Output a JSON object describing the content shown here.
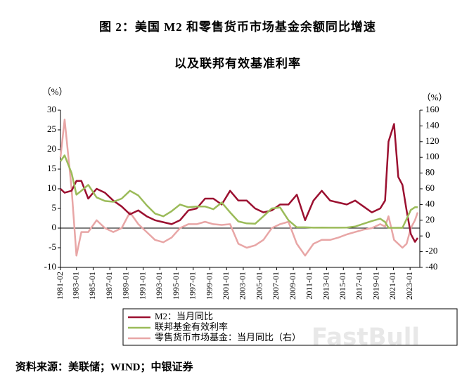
{
  "chart_data": {
    "type": "line",
    "title": "图 2：美国 M2 和零售货币市场基金余额同比增速",
    "subtitle": "以及联邦有效基准利率",
    "ylabel": "（%）",
    "y2label": "（%）",
    "source": "资料来源：美联储；WIND；中银证券",
    "watermark": "FastBull",
    "x": [
      "1981-02",
      "1981-08",
      "1982-06",
      "1983-01",
      "1983-08",
      "1984-06",
      "1985-06",
      "1986-06",
      "1987-06",
      "1988-06",
      "1989-06",
      "1990-06",
      "1991-06",
      "1992-06",
      "1993-06",
      "1994-06",
      "1995-06",
      "1996-06",
      "1997-06",
      "1998-06",
      "1999-06",
      "2000-06",
      "2001-06",
      "2002-06",
      "2003-06",
      "2004-06",
      "2005-06",
      "2006-06",
      "2007-06",
      "2008-06",
      "2009-06",
      "2010-06",
      "2011-06",
      "2012-06",
      "2013-06",
      "2014-06",
      "2015-06",
      "2016-06",
      "2017-06",
      "2018-06",
      "2019-06",
      "2020-01",
      "2020-06",
      "2021-02",
      "2021-08",
      "2022-02",
      "2022-08",
      "2023-02",
      "2023-08",
      "2023-12"
    ],
    "xlim": [
      "1981-02",
      "2024-03"
    ],
    "xticks": [
      "1981-02",
      "1983-01",
      "1985-01",
      "1987-01",
      "1989-01",
      "1991-01",
      "1993-01",
      "1995-01",
      "1997-01",
      "1999-01",
      "2001-01",
      "2003-01",
      "2005-01",
      "2007-01",
      "2009-01",
      "2011-01",
      "2013-01",
      "2015-01",
      "2017-01",
      "2019-01",
      "2021-01",
      "2023-01"
    ],
    "ylim": [
      -10,
      30
    ],
    "yticks": [
      -10,
      -5,
      0,
      5,
      10,
      15,
      20,
      25,
      30
    ],
    "y2lim": [
      -40,
      160
    ],
    "y2ticks": [
      -40,
      -20,
      0,
      20,
      40,
      60,
      80,
      100,
      120,
      140,
      160
    ],
    "grid": false,
    "series": [
      {
        "name": "M2：当月同比",
        "color": "#9b1030",
        "values": [
          10,
          9,
          9.5,
          12,
          12,
          7.5,
          10,
          9,
          7,
          5.5,
          3.5,
          4.5,
          3,
          2,
          1.5,
          1,
          2,
          4.5,
          5,
          7.5,
          7.5,
          6,
          9.5,
          7,
          7,
          5,
          4,
          4.5,
          6,
          6,
          8.5,
          2,
          7,
          9.5,
          7,
          6.5,
          6,
          7,
          5.5,
          4,
          5,
          7,
          22,
          26.5,
          13,
          11,
          4.5,
          -1.5,
          -3.5,
          -2.5
        ]
      },
      {
        "name": "联邦基金有效利率",
        "color": "#9bbb59",
        "values": [
          17,
          18.5,
          14,
          8.5,
          9.5,
          11,
          7.8,
          6.9,
          6.7,
          7.5,
          9.5,
          8.3,
          5.8,
          3.7,
          3,
          4.3,
          6,
          5.3,
          5.5,
          5.5,
          4.8,
          6.5,
          4,
          1.7,
          1.2,
          1.1,
          3,
          5,
          5.25,
          2,
          0.2,
          0.2,
          0.1,
          0.15,
          0.1,
          0.1,
          0.13,
          0.4,
          1.1,
          1.8,
          2.4,
          1.55,
          0.08,
          0.07,
          0.09,
          0.08,
          2.3,
          4.6,
          5.3,
          5.3
        ]
      },
      {
        "name": "零售货币市场基金：当月同比（右）",
        "color": "#e8a6a6",
        "axis": "y2",
        "values": [
          100,
          148,
          60,
          -25,
          5,
          5,
          20,
          10,
          5,
          10,
          30,
          15,
          5,
          -5,
          -8,
          -2,
          10,
          15,
          15,
          18,
          15,
          14,
          15,
          -10,
          -15,
          -12,
          -5,
          10,
          15,
          18,
          -10,
          -25,
          -10,
          -5,
          -5,
          -2,
          2,
          5,
          8,
          10,
          15,
          12,
          25,
          -5,
          -10,
          -15,
          -10,
          10,
          20,
          30
        ]
      }
    ]
  }
}
